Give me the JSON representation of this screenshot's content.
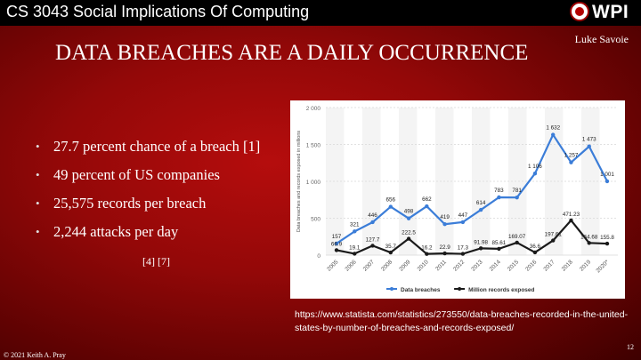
{
  "course_title": "CS 3043 Social Implications Of Computing",
  "logo_text": "WPI",
  "author": "Luke Savoie",
  "slide_title": "DATA BREACHES ARE A DAILY OCCURRENCE",
  "bullets": [
    "27.7 percent chance of a breach [1]",
    "49 percent of US companies",
    "25,575 records per breach",
    "2,244 attacks per day"
  ],
  "citations": "[4] [7]",
  "source_url": "https://www.statista.com/statistics/273550/data-breaches-recorded-in-the-united-states-by-number-of-breaches-and-records-exposed/",
  "footer": "© 2021 Keith A. Pray",
  "page_number": "12",
  "chart_data": {
    "type": "line",
    "categories": [
      "2005",
      "2006",
      "2007",
      "2008",
      "2009",
      "2010",
      "2011",
      "2012",
      "2013",
      "2014",
      "2015",
      "2016",
      "2017",
      "2018",
      "2019",
      "2020*"
    ],
    "ylabel": "Data breaches and records exposed in millions",
    "ylim": [
      0,
      2000
    ],
    "yticks": [
      0,
      500,
      1000,
      1500,
      2000
    ],
    "ytick_labels": [
      "0",
      "500",
      "1 000",
      "1 500",
      "2 000"
    ],
    "grid": true,
    "legend_position": "bottom",
    "series": [
      {
        "name": "Data breaches",
        "color": "#3b7dd8",
        "values": [
          157,
          321,
          446,
          656,
          498,
          662,
          419,
          447,
          614,
          783,
          781,
          1106,
          1632,
          1257,
          1473,
          1001
        ],
        "labels": [
          "157",
          "321",
          "446",
          "656",
          "498",
          "662",
          "419",
          "447",
          "614",
          "783",
          "781",
          "1 106",
          "1 632",
          "1 257",
          "1 473",
          "1 001"
        ]
      },
      {
        "name": "Million records exposed",
        "color": "#1a1a1a",
        "values": [
          66.9,
          19.1,
          127.7,
          35.7,
          222.5,
          16.2,
          22.9,
          17.3,
          91.98,
          85.61,
          169.07,
          36.6,
          197.61,
          471.23,
          164.68,
          155.8
        ],
        "labels": [
          "66.9",
          "19.1",
          "127.7",
          "35.7",
          "222.5",
          "16.2",
          "22.9",
          "17.3",
          "91.98",
          "85.61",
          "169.07",
          "36.6",
          "197.61",
          "471.23",
          "164.68",
          "155.8"
        ]
      }
    ]
  }
}
